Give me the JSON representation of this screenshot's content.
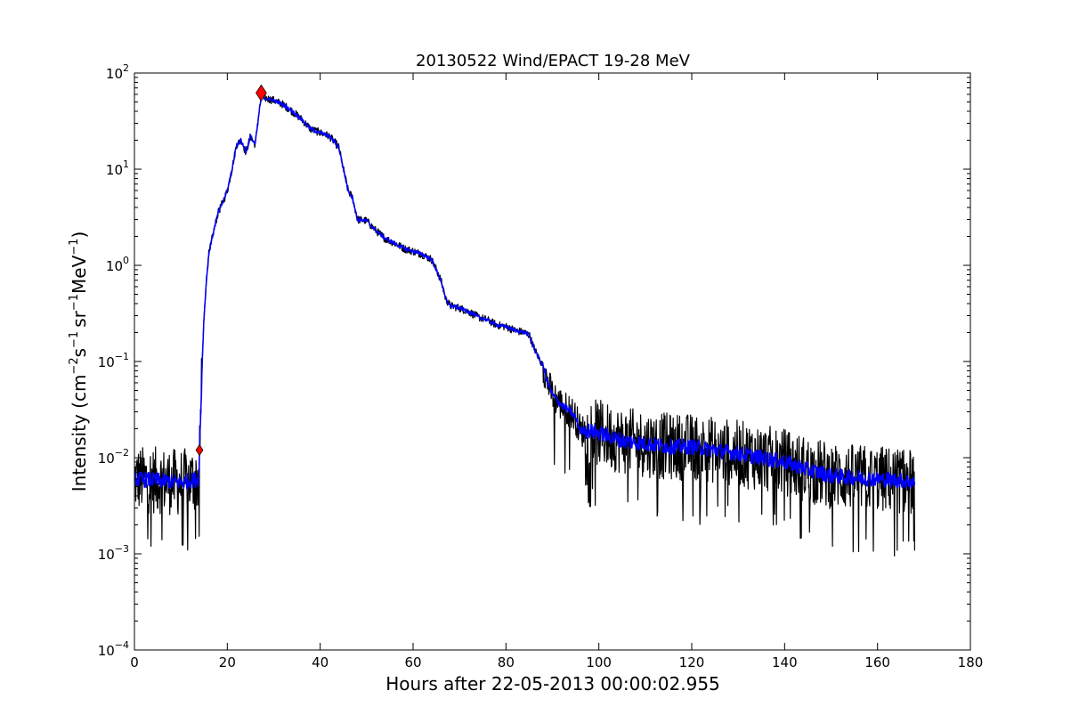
{
  "chart_data": {
    "type": "line",
    "title": "20130522 Wind/EPACT 19-28 MeV",
    "xlabel": "Hours after 22-05-2013 00:00:02.955",
    "ylabel_parts": {
      "lead": "Intensity (cm",
      "exp1": "−2",
      "s": "s",
      "exp2": "−1",
      "sr": "sr",
      "exp3": "−1",
      "mev": "MeV",
      "exp4": "−1",
      "close": ")"
    },
    "xlim": [
      0,
      180
    ],
    "ylim": [
      0.0001,
      100
    ],
    "yscale": "log",
    "grid": false,
    "x_ticks": [
      0,
      20,
      40,
      60,
      80,
      100,
      120,
      140,
      160,
      180
    ],
    "x_tick_labels": [
      "0",
      "20",
      "40",
      "60",
      "80",
      "100",
      "120",
      "140",
      "160",
      "180"
    ],
    "y_ticks": [
      {
        "value": 0.0001,
        "base": "10",
        "exp": "−4"
      },
      {
        "value": 0.001,
        "base": "10",
        "exp": "−3"
      },
      {
        "value": 0.01,
        "base": "10",
        "exp": "−2"
      },
      {
        "value": 0.1,
        "base": "10",
        "exp": "−1"
      },
      {
        "value": 1,
        "base": "10",
        "exp": "0"
      },
      {
        "value": 10,
        "base": "10",
        "exp": "1"
      },
      {
        "value": 100,
        "base": "10",
        "exp": "2"
      }
    ],
    "series": [
      {
        "role": "raw",
        "color": "#000000",
        "x_range": [
          0,
          168
        ],
        "x": [
          0,
          5,
          10,
          13.8,
          14.0,
          14.3,
          14.6,
          15.0,
          15.5,
          16,
          17,
          18,
          19,
          20,
          21,
          22,
          23,
          24,
          25,
          26,
          27,
          27.5,
          28,
          30,
          32,
          34,
          36,
          38,
          40,
          42,
          44,
          45,
          46,
          47,
          48,
          50,
          52,
          54,
          56,
          58,
          60,
          62,
          64,
          66,
          67,
          68,
          70,
          72,
          74,
          76,
          78,
          80,
          82,
          84,
          85,
          86,
          87,
          88,
          89,
          90,
          92,
          94,
          95,
          96,
          98,
          100,
          105,
          110,
          115,
          120,
          125,
          130,
          135,
          140,
          145,
          150,
          155,
          160,
          165,
          168
        ],
        "y": [
          0.006,
          0.0058,
          0.0055,
          0.006,
          0.012,
          0.03,
          0.1,
          0.3,
          0.7,
          1.3,
          2.2,
          3.5,
          4.5,
          6,
          10,
          18,
          20,
          15,
          22,
          18,
          45,
          62,
          55,
          52,
          47,
          40,
          33,
          26,
          24,
          22,
          17,
          10,
          6,
          5,
          3,
          2.9,
          2.3,
          1.9,
          1.7,
          1.5,
          1.4,
          1.3,
          1.15,
          0.7,
          0.45,
          0.38,
          0.36,
          0.33,
          0.29,
          0.27,
          0.24,
          0.23,
          0.21,
          0.2,
          0.19,
          0.14,
          0.11,
          0.09,
          0.06,
          0.045,
          0.035,
          0.03,
          0.026,
          0.019,
          0.019,
          0.018,
          0.015,
          0.014,
          0.013,
          0.013,
          0.012,
          0.011,
          0.01,
          0.009,
          0.0075,
          0.0065,
          0.0062,
          0.006,
          0.0058,
          0.0055
        ],
        "noise_amplitude_log10": 0.35,
        "noise_floor": 0.00087
      },
      {
        "role": "smoothed",
        "color": "#0000ff",
        "x": [
          0,
          5,
          10,
          13.8,
          14.0,
          14.3,
          14.6,
          15.0,
          15.5,
          16,
          17,
          18,
          19,
          20,
          21,
          22,
          23,
          24,
          25,
          26,
          27,
          27.5,
          28,
          30,
          32,
          34,
          36,
          38,
          40,
          42,
          44,
          45,
          46,
          47,
          48,
          50,
          52,
          54,
          56,
          58,
          60,
          62,
          64,
          66,
          67,
          68,
          70,
          72,
          74,
          76,
          78,
          80,
          82,
          84,
          85,
          86,
          87,
          88,
          89,
          90,
          92,
          94,
          95,
          96,
          98,
          100,
          105,
          110,
          115,
          120,
          125,
          130,
          135,
          140,
          145,
          150,
          155,
          160,
          165,
          168
        ],
        "y": [
          0.006,
          0.0058,
          0.0055,
          0.006,
          0.012,
          0.03,
          0.1,
          0.3,
          0.7,
          1.3,
          2.2,
          3.5,
          4.5,
          6,
          10,
          18,
          20,
          15,
          22,
          18,
          45,
          62,
          55,
          52,
          47,
          40,
          33,
          26,
          24,
          22,
          17,
          10,
          6,
          5,
          3,
          2.9,
          2.3,
          1.9,
          1.7,
          1.5,
          1.4,
          1.3,
          1.15,
          0.7,
          0.45,
          0.38,
          0.36,
          0.33,
          0.29,
          0.27,
          0.24,
          0.23,
          0.21,
          0.2,
          0.19,
          0.14,
          0.11,
          0.09,
          0.06,
          0.045,
          0.035,
          0.03,
          0.026,
          0.019,
          0.019,
          0.018,
          0.015,
          0.014,
          0.013,
          0.013,
          0.012,
          0.011,
          0.01,
          0.009,
          0.0075,
          0.0065,
          0.0062,
          0.006,
          0.0058,
          0.0055
        ],
        "noise_amplitude_log10": 0.08
      }
    ],
    "markers": [
      {
        "name": "onset",
        "x": 14.0,
        "y": 0.012,
        "shape": "diamond",
        "color": "#ff0000"
      },
      {
        "name": "peak",
        "x": 27.3,
        "y": 62,
        "shape": "diamond",
        "color": "#ff0000"
      }
    ]
  }
}
